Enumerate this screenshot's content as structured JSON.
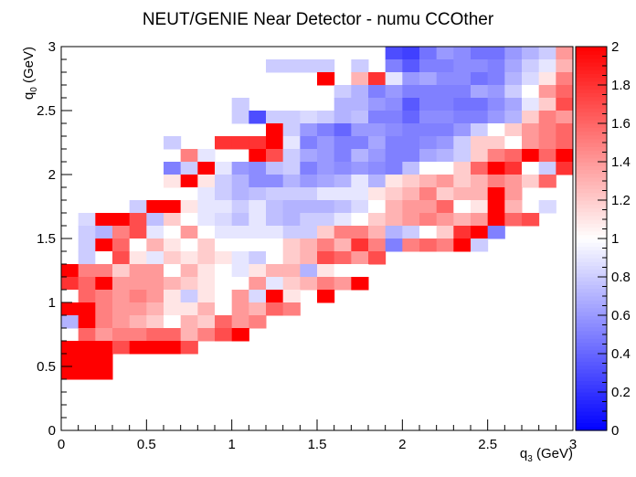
{
  "chart_data": {
    "type": "heatmap",
    "title": "NEUT/GENIE Near Detector - numu CCOther",
    "xlabel": {
      "main": "q",
      "sub": "3",
      "unit": " (GeV)"
    },
    "ylabel": {
      "main": "q",
      "sub": "0",
      "unit": " (GeV)"
    },
    "xlim": [
      0,
      3
    ],
    "ylim": [
      0,
      3
    ],
    "zlim": [
      0,
      2
    ],
    "x_ticks": [
      "0",
      "0.5",
      "1",
      "1.5",
      "2",
      "2.5",
      "3"
    ],
    "y_ticks": [
      "0",
      "0.5",
      "1",
      "1.5",
      "2",
      "2.5",
      "3"
    ],
    "z_ticks": [
      "0",
      "0.2",
      "0.4",
      "0.6",
      "0.8",
      "1",
      "1.2",
      "1.4",
      "1.6",
      "1.8",
      "2"
    ],
    "colormap": {
      "low": "#0000ff",
      "mid": "#ffffff",
      "high": "#ff0000"
    },
    "bins_x": 30,
    "bins_y": 30,
    "bin_width": 0.1,
    "rows_note": "rows ordered from top (q0 2.9-3.0) to bottom (q0 0.0-0.1); columns q3 0.0-0.1 ... 2.9-3.0; null = empty bin",
    "rows": [
      [
        null,
        null,
        null,
        null,
        null,
        null,
        null,
        null,
        null,
        null,
        null,
        null,
        null,
        null,
        null,
        null,
        null,
        null,
        null,
        0.3,
        0.25,
        0.45,
        0.6,
        0.55,
        0.45,
        0.45,
        0.6,
        0.7,
        0.8,
        1.4
      ],
      [
        null,
        null,
        null,
        null,
        null,
        null,
        null,
        null,
        null,
        null,
        null,
        null,
        0.8,
        0.8,
        0.8,
        0.8,
        null,
        0.8,
        null,
        0.5,
        0.35,
        0.5,
        0.5,
        0.55,
        0.55,
        0.5,
        0.65,
        0.8,
        0.9,
        1.3
      ],
      [
        null,
        null,
        null,
        null,
        null,
        null,
        null,
        null,
        null,
        null,
        null,
        null,
        null,
        null,
        null,
        2.0,
        null,
        1.3,
        1.8,
        0.9,
        0.6,
        0.65,
        0.55,
        0.55,
        0.45,
        0.5,
        0.7,
        0.85,
        1.1,
        1.5
      ],
      [
        null,
        null,
        null,
        null,
        null,
        null,
        null,
        null,
        null,
        null,
        null,
        null,
        null,
        null,
        null,
        null,
        0.8,
        0.7,
        0.5,
        0.6,
        0.5,
        0.5,
        0.5,
        0.5,
        0.65,
        0.6,
        0.8,
        1.0,
        1.4,
        1.6
      ],
      [
        null,
        null,
        null,
        null,
        null,
        null,
        null,
        null,
        null,
        null,
        0.8,
        null,
        null,
        null,
        null,
        null,
        0.7,
        0.7,
        0.6,
        0.55,
        0.35,
        0.5,
        0.5,
        0.45,
        0.45,
        0.55,
        0.65,
        0.9,
        1.2,
        1.7
      ],
      [
        null,
        null,
        null,
        null,
        null,
        null,
        null,
        null,
        null,
        null,
        0.8,
        0.3,
        0.8,
        0.8,
        0.85,
        0.8,
        0.7,
        0.75,
        0.5,
        0.5,
        0.4,
        0.55,
        0.55,
        0.5,
        0.5,
        0.6,
        0.7,
        1.2,
        1.5,
        1.4
      ],
      [
        null,
        null,
        null,
        null,
        null,
        null,
        null,
        null,
        null,
        null,
        null,
        null,
        2.0,
        0.8,
        0.6,
        0.5,
        0.4,
        0.6,
        0.6,
        0.55,
        0.5,
        0.5,
        0.5,
        0.6,
        0.8,
        1.0,
        1.2,
        1.4,
        1.5,
        1.6
      ],
      [
        null,
        null,
        null,
        null,
        null,
        null,
        0.8,
        null,
        null,
        1.8,
        1.8,
        1.8,
        2.0,
        0.9,
        0.5,
        0.6,
        0.5,
        0.5,
        0.65,
        0.5,
        0.5,
        0.55,
        0.6,
        0.8,
        1.2,
        1.2,
        1.0,
        1.4,
        1.5,
        1.6
      ],
      [
        null,
        null,
        null,
        null,
        null,
        null,
        null,
        1.5,
        0.9,
        null,
        null,
        2.0,
        1.7,
        0.8,
        0.65,
        0.6,
        0.5,
        0.7,
        0.6,
        0.5,
        0.5,
        0.65,
        0.7,
        0.8,
        1.2,
        1.5,
        1.6,
        2.0,
        1.6,
        2.0
      ],
      [
        null,
        null,
        null,
        null,
        null,
        null,
        0.5,
        0.8,
        2.0,
        0.9,
        0.6,
        0.55,
        0.75,
        0.8,
        0.5,
        0.6,
        0.55,
        0.6,
        0.55,
        0.5,
        0.75,
        1.0,
        1.0,
        1.2,
        1.6,
        2.0,
        1.8,
        1.0,
        0.8,
        1.8
      ],
      [
        null,
        null,
        null,
        null,
        null,
        null,
        1.1,
        2.0,
        1.1,
        0.8,
        0.7,
        0.55,
        0.55,
        0.7,
        0.6,
        0.65,
        0.7,
        0.9,
        0.7,
        1.1,
        1.2,
        1.3,
        1.4,
        1.2,
        1.3,
        1.5,
        1.4,
        1.2,
        1.6,
        null
      ],
      [
        null,
        null,
        null,
        null,
        null,
        null,
        null,
        1.0,
        0.9,
        0.8,
        0.7,
        0.75,
        0.8,
        0.8,
        0.8,
        0.9,
        0.9,
        0.9,
        1.1,
        1.2,
        1.3,
        1.5,
        1.2,
        1.3,
        1.3,
        2.0,
        1.4,
        null,
        null,
        null
      ],
      [
        null,
        null,
        null,
        null,
        0.8,
        2.0,
        2.0,
        1.1,
        0.9,
        0.9,
        0.8,
        0.9,
        0.75,
        0.7,
        0.7,
        0.7,
        0.75,
        0.85,
        1.0,
        1.3,
        1.4,
        1.4,
        1.6,
        1.0,
        1.1,
        2.0,
        1.3,
        null,
        0.85,
        null
      ],
      [
        null,
        0.85,
        2.0,
        2.0,
        1.7,
        0.75,
        1.2,
        1.0,
        0.9,
        0.85,
        0.75,
        0.9,
        0.75,
        0.7,
        0.8,
        0.8,
        0.9,
        1.0,
        1.2,
        1.3,
        1.4,
        1.5,
        1.4,
        1.3,
        1.4,
        2.0,
        1.6,
        1.7,
        null,
        null
      ],
      [
        null,
        0.8,
        0.7,
        1.5,
        1.7,
        0.9,
        1.0,
        1.4,
        1.0,
        0.9,
        0.9,
        0.9,
        0.9,
        0.8,
        0.8,
        1.2,
        1.5,
        1.5,
        1.3,
        0.7,
        0.8,
        1.0,
        1.2,
        1.8,
        2.0,
        0.5,
        null,
        null,
        null,
        null
      ],
      [
        null,
        0.8,
        2.0,
        1.6,
        1.0,
        1.3,
        1.1,
        1.0,
        1.2,
        1.0,
        1.0,
        1.0,
        1.0,
        1.2,
        1.3,
        1.5,
        1.3,
        1.8,
        1.5,
        0.5,
        1.5,
        1.6,
        1.5,
        2.0,
        0.8,
        null,
        null,
        null,
        null,
        null
      ],
      [
        null,
        0.8,
        1.0,
        1.7,
        1.1,
        0.9,
        1.2,
        1.1,
        1.2,
        1.1,
        0.9,
        0.8,
        1.0,
        1.2,
        1.3,
        1.7,
        1.6,
        1.4,
        1.7,
        null,
        null,
        null,
        null,
        null,
        null,
        null,
        null,
        null,
        null,
        null
      ],
      [
        2.0,
        1.5,
        1.5,
        1.2,
        1.4,
        1.4,
        1.0,
        1.3,
        1.1,
        1.0,
        0.9,
        1.1,
        1.3,
        1.3,
        0.7,
        1.1,
        1.0,
        1.0,
        null,
        null,
        null,
        null,
        null,
        null,
        null,
        null,
        null,
        null,
        null,
        null
      ],
      [
        1.8,
        1.6,
        2.0,
        1.4,
        1.4,
        1.4,
        1.3,
        1.2,
        1.1,
        1.0,
        1.0,
        1.4,
        0.9,
        1.2,
        1.3,
        1.5,
        1.4,
        2.0,
        null,
        null,
        null,
        null,
        null,
        null,
        null,
        null,
        null,
        null,
        null,
        null
      ],
      [
        1.0,
        1.6,
        1.5,
        1.4,
        1.5,
        1.4,
        1.1,
        0.8,
        1.1,
        1.0,
        1.4,
        0.85,
        2.0,
        1.1,
        null,
        2.0,
        null,
        null,
        null,
        null,
        null,
        null,
        null,
        null,
        null,
        null,
        null,
        null,
        null,
        null
      ],
      [
        2.0,
        2.0,
        1.5,
        1.4,
        1.4,
        1.3,
        1.1,
        1.1,
        1.3,
        1.0,
        1.4,
        1.3,
        1.6,
        1.5,
        null,
        null,
        null,
        null,
        null,
        null,
        null,
        null,
        null,
        null,
        null,
        null,
        null,
        null,
        null,
        null
      ],
      [
        0.7,
        2.0,
        1.5,
        1.4,
        1.3,
        1.2,
        1.0,
        1.3,
        1.2,
        1.6,
        1.4,
        1.5,
        null,
        null,
        null,
        null,
        null,
        null,
        null,
        null,
        null,
        null,
        null,
        null,
        null,
        null,
        null,
        null,
        null,
        null
      ],
      [
        null,
        1.6,
        1.4,
        1.5,
        1.5,
        1.6,
        1.6,
        1.3,
        1.5,
        1.7,
        2.0,
        null,
        null,
        null,
        null,
        null,
        null,
        null,
        null,
        null,
        null,
        null,
        null,
        null,
        null,
        null,
        null,
        null,
        null,
        null
      ],
      [
        2.0,
        2.0,
        2.0,
        1.7,
        2.0,
        2.0,
        2.0,
        1.7,
        null,
        null,
        null,
        null,
        null,
        null,
        null,
        null,
        null,
        null,
        null,
        null,
        null,
        null,
        null,
        null,
        null,
        null,
        null,
        null,
        null,
        null
      ],
      [
        2.0,
        2.0,
        2.0,
        null,
        null,
        null,
        null,
        null,
        null,
        null,
        null,
        null,
        null,
        null,
        null,
        null,
        null,
        null,
        null,
        null,
        null,
        null,
        null,
        null,
        null,
        null,
        null,
        null,
        null,
        null
      ],
      [
        2.0,
        2.0,
        2.0,
        null,
        null,
        null,
        null,
        null,
        null,
        null,
        null,
        null,
        null,
        null,
        null,
        null,
        null,
        null,
        null,
        null,
        null,
        null,
        null,
        null,
        null,
        null,
        null,
        null,
        null,
        null
      ],
      [
        null,
        null,
        null,
        null,
        null,
        null,
        null,
        null,
        null,
        null,
        null,
        null,
        null,
        null,
        null,
        null,
        null,
        null,
        null,
        null,
        null,
        null,
        null,
        null,
        null,
        null,
        null,
        null,
        null,
        null
      ],
      [
        null,
        null,
        null,
        null,
        null,
        null,
        null,
        null,
        null,
        null,
        null,
        null,
        null,
        null,
        null,
        null,
        null,
        null,
        null,
        null,
        null,
        null,
        null,
        null,
        null,
        null,
        null,
        null,
        null,
        null
      ],
      [
        null,
        null,
        null,
        null,
        null,
        null,
        null,
        null,
        null,
        null,
        null,
        null,
        null,
        null,
        null,
        null,
        null,
        null,
        null,
        null,
        null,
        null,
        null,
        null,
        null,
        null,
        null,
        null,
        null,
        null
      ],
      [
        null,
        null,
        null,
        null,
        null,
        null,
        null,
        null,
        null,
        null,
        null,
        null,
        null,
        null,
        null,
        null,
        null,
        null,
        null,
        null,
        null,
        null,
        null,
        null,
        null,
        null,
        null,
        null,
        null,
        null
      ]
    ]
  }
}
